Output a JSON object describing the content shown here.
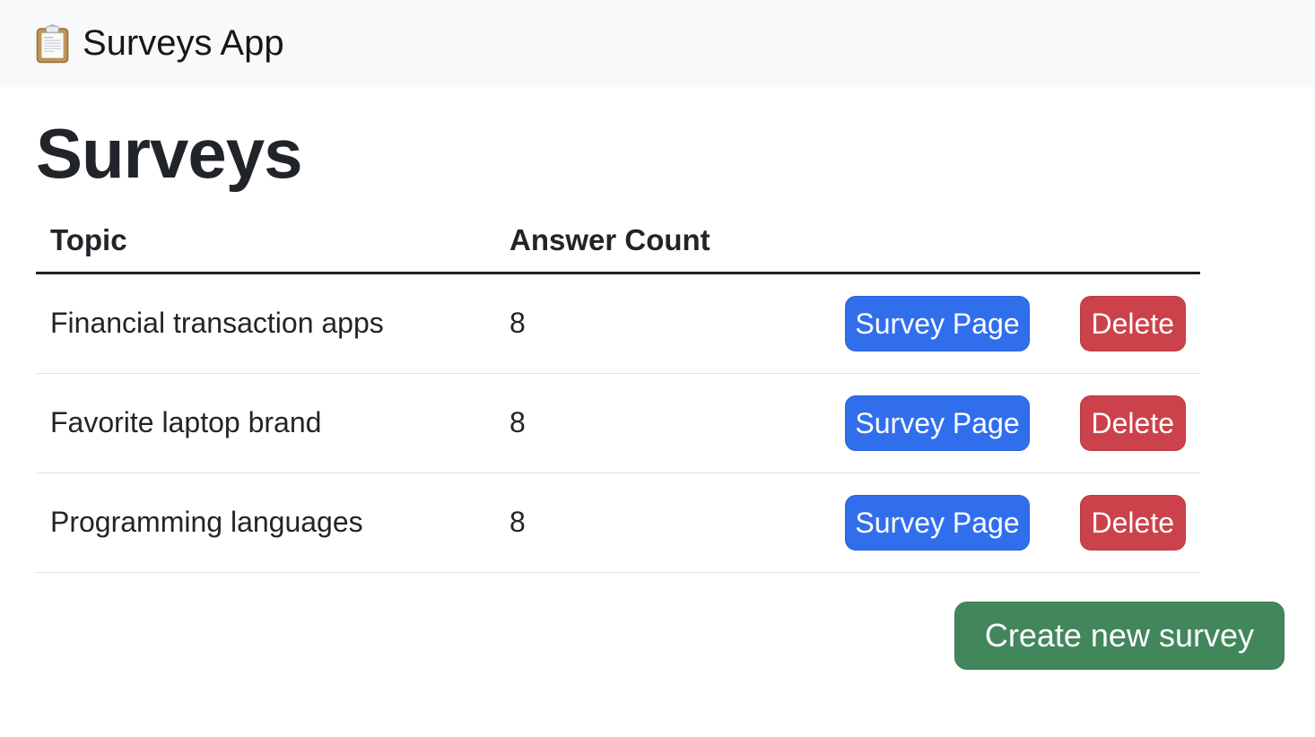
{
  "navbar": {
    "brand_label": "Surveys App",
    "brand_icon": "clipboard-icon"
  },
  "page": {
    "title": "Surveys"
  },
  "table": {
    "headers": [
      "Topic",
      "Answer Count"
    ],
    "rows": [
      {
        "topic": "Financial transaction apps",
        "answer_count": "8",
        "survey_page_label": "Survey Page",
        "delete_label": "Delete"
      },
      {
        "topic": "Favorite laptop brand",
        "answer_count": "8",
        "survey_page_label": "Survey Page",
        "delete_label": "Delete"
      },
      {
        "topic": "Programming languages",
        "answer_count": "8",
        "survey_page_label": "Survey Page",
        "delete_label": "Delete"
      }
    ]
  },
  "actions": {
    "create_new_survey_label": "Create new survey"
  },
  "colors": {
    "primary": "#306eec",
    "danger": "#cc424b",
    "success": "#42875c",
    "navbar_bg": "#f8f9fa",
    "text": "#212529",
    "row_divider": "#dee2e6",
    "header_border": "#1d2125"
  }
}
